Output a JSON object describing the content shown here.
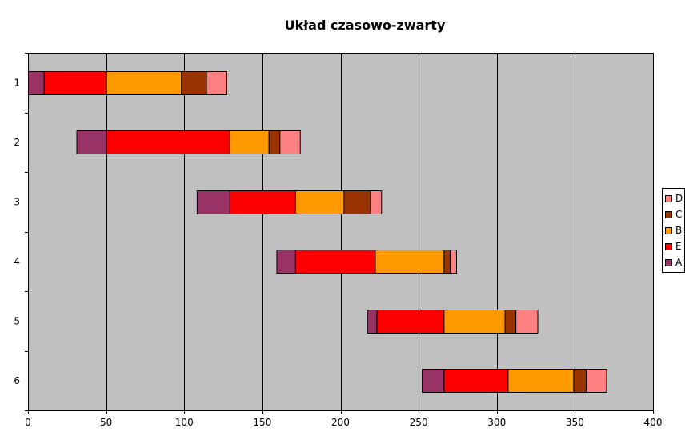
{
  "chart_data": {
    "type": "bar",
    "orientation": "horizontal",
    "stacked": true,
    "title": "Układ czasowo-zwarty",
    "categories": [
      "1",
      "2",
      "3",
      "4",
      "5",
      "6"
    ],
    "xlim": [
      0,
      400
    ],
    "x_ticks": [
      0,
      50,
      100,
      150,
      200,
      250,
      300,
      350,
      400
    ],
    "grid": true,
    "legend_position": "right",
    "legend_order": [
      "D",
      "C",
      "B",
      "E",
      "A"
    ],
    "series": [
      {
        "name": "A",
        "color": "#993366",
        "segments": [
          [
            0,
            10
          ],
          [
            31,
            50
          ],
          [
            108,
            129
          ],
          [
            159,
            171
          ],
          [
            217,
            223
          ],
          [
            252,
            266
          ]
        ]
      },
      {
        "name": "E",
        "color": "#FF0000",
        "segments": [
          [
            10,
            50
          ],
          [
            50,
            129
          ],
          [
            129,
            171
          ],
          [
            171,
            222
          ],
          [
            223,
            266
          ],
          [
            266,
            307
          ]
        ]
      },
      {
        "name": "B",
        "color": "#FF9900",
        "segments": [
          [
            50,
            98
          ],
          [
            129,
            154
          ],
          [
            171,
            202
          ],
          [
            222,
            266
          ],
          [
            266,
            305
          ],
          [
            307,
            349
          ]
        ]
      },
      {
        "name": "C",
        "color": "#993300",
        "segments": [
          [
            98,
            114
          ],
          [
            154,
            161
          ],
          [
            202,
            219
          ],
          [
            266,
            270
          ],
          [
            305,
            312
          ],
          [
            349,
            357
          ]
        ]
      },
      {
        "name": "D",
        "color": "#FF8080",
        "segments": [
          [
            114,
            127
          ],
          [
            161,
            174
          ],
          [
            219,
            226
          ],
          [
            270,
            274
          ],
          [
            312,
            326
          ],
          [
            357,
            370
          ]
        ]
      }
    ]
  }
}
